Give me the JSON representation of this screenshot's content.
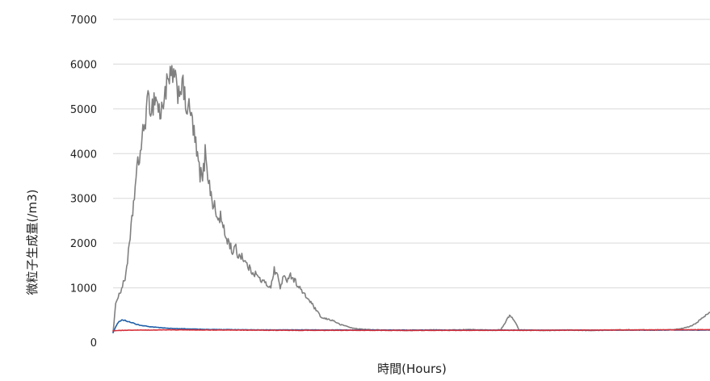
{
  "chart_data": {
    "type": "line",
    "title": "",
    "xlabel": "時間(Hours)",
    "ylabel": "微粒子生成量(/m3)",
    "ylim": [
      0,
      7000
    ],
    "yticks": [
      0,
      1000,
      2000,
      3000,
      4000,
      5000,
      6000,
      7000
    ],
    "grid": true,
    "legend": "none",
    "x_ticks_shown": false,
    "series": [
      {
        "color": "#808080",
        "x": [
          0.0,
          0.005,
          0.012,
          0.02,
          0.028,
          0.035,
          0.04,
          0.045,
          0.05,
          0.055,
          0.06,
          0.065,
          0.07,
          0.075,
          0.08,
          0.085,
          0.09,
          0.095,
          0.1,
          0.105,
          0.11,
          0.115,
          0.12,
          0.125,
          0.13,
          0.135,
          0.14,
          0.145,
          0.15,
          0.155,
          0.16,
          0.165,
          0.17,
          0.175,
          0.18,
          0.185,
          0.19,
          0.195,
          0.2,
          0.205,
          0.21,
          0.215,
          0.22,
          0.225,
          0.23,
          0.235,
          0.24,
          0.245,
          0.25,
          0.255,
          0.26,
          0.265,
          0.27,
          0.275,
          0.28,
          0.285,
          0.29,
          0.295,
          0.3,
          0.31,
          0.32,
          0.33,
          0.34,
          0.35,
          0.36,
          0.37,
          0.38,
          0.39,
          0.4,
          0.42,
          0.44,
          0.46,
          0.48,
          0.5,
          0.52,
          0.54,
          0.56,
          0.58,
          0.6,
          0.62,
          0.64,
          0.65,
          0.665,
          0.67,
          0.675,
          0.68,
          0.7,
          0.72,
          0.74,
          0.76,
          0.8,
          0.84,
          0.9,
          0.93,
          0.95,
          0.97,
          0.98,
          0.99,
          1.0
        ],
        "values": [
          0,
          720,
          900,
          1200,
          2000,
          3000,
          3600,
          4000,
          4400,
          4900,
          5200,
          5000,
          5300,
          5100,
          4800,
          5300,
          5500,
          5600,
          5800,
          5500,
          5400,
          5600,
          5200,
          5000,
          4900,
          4500,
          4000,
          3600,
          3400,
          4100,
          3400,
          3000,
          2800,
          2500,
          2600,
          2300,
          2100,
          2000,
          1800,
          1900,
          1700,
          1750,
          1600,
          1500,
          1400,
          1350,
          1300,
          1200,
          1150,
          1100,
          1050,
          1050,
          1400,
          1300,
          1000,
          1250,
          1150,
          1300,
          1250,
          1050,
          850,
          700,
          500,
          320,
          300,
          260,
          180,
          150,
          100,
          70,
          60,
          55,
          50,
          50,
          55,
          60,
          55,
          60,
          65,
          60,
          50,
          75,
          400,
          300,
          200,
          60,
          55,
          50,
          50,
          55,
          50,
          60,
          60,
          60,
          80,
          150,
          250,
          350,
          470
        ]
      },
      {
        "color": "#1f5fa8",
        "x": [
          0.0,
          0.005,
          0.01,
          0.015,
          0.02,
          0.03,
          0.04,
          0.06,
          0.08,
          0.1,
          0.13,
          0.16,
          0.2,
          0.25,
          0.3,
          0.4,
          0.5,
          0.6,
          0.7,
          0.8,
          0.9,
          1.0
        ],
        "values": [
          0,
          150,
          250,
          280,
          270,
          230,
          180,
          130,
          110,
          90,
          80,
          70,
          65,
          60,
          60,
          58,
          56,
          55,
          55,
          55,
          55,
          55
        ]
      },
      {
        "color": "#d6303a",
        "x": [
          0.0,
          0.01,
          0.05,
          0.1,
          0.2,
          0.3,
          0.4,
          0.5,
          0.6,
          0.7,
          0.8,
          0.9,
          1.0
        ],
        "values": [
          40,
          50,
          55,
          60,
          55,
          50,
          50,
          48,
          50,
          50,
          55,
          60,
          65
        ]
      }
    ]
  }
}
